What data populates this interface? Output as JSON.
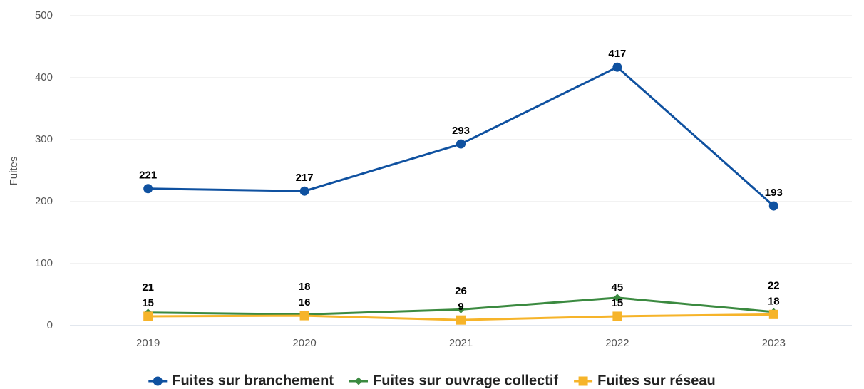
{
  "chart_data": {
    "type": "line",
    "y_label": "Fuites",
    "categories": [
      "2019",
      "2020",
      "2021",
      "2022",
      "2023"
    ],
    "series": [
      {
        "name": "Fuites sur branchement",
        "color": "#0f51a0",
        "marker": "circle",
        "values": [
          221,
          217,
          293,
          417,
          193
        ]
      },
      {
        "name": "Fuites sur ouvrage collectif",
        "color": "#3b8a40",
        "marker": "diamond",
        "values": [
          21,
          18,
          26,
          45,
          22
        ]
      },
      {
        "name": "Fuites sur réseau",
        "color": "#f6b42a",
        "marker": "square",
        "values": [
          15,
          16,
          9,
          15,
          18
        ]
      }
    ],
    "ylim": [
      0,
      500
    ],
    "yticks": [
      0,
      100,
      200,
      300,
      400,
      500
    ],
    "grid": true,
    "legend": "bottom"
  }
}
